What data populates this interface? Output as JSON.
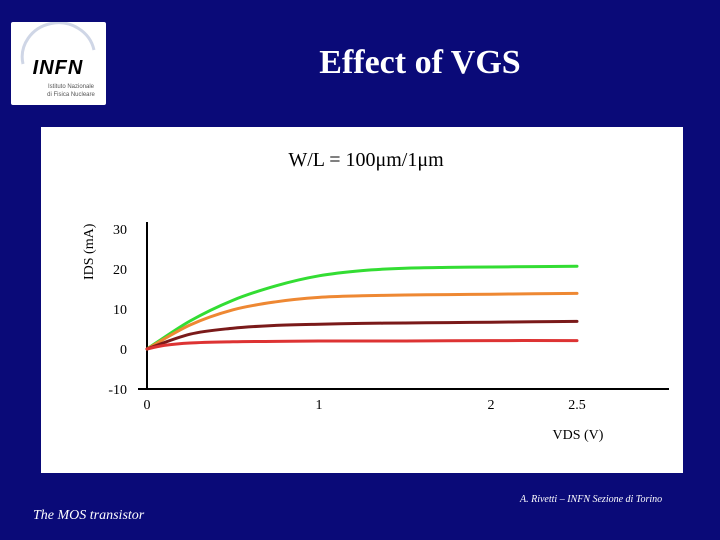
{
  "slide": {
    "title": "Effect of VGS",
    "footer_left": "The MOS transistor",
    "footer_right": "A. Rivetti – INFN Sezione di Torino"
  },
  "logo": {
    "text": "INFN",
    "subtitle_1": "Istituto Nazionale",
    "subtitle_2": "di Fisica Nucleare",
    "accent_color": "#1a3f8f"
  },
  "chart_data": {
    "type": "line",
    "title": "W/L = 100μm/1μm",
    "xlabel": "VDS (V)",
    "ylabel": "IDS (mA)",
    "xlim": [
      0,
      3.0
    ],
    "ylim": [
      -10,
      30
    ],
    "x_ticks": [
      "0",
      "1",
      "2",
      "2.5"
    ],
    "x_tick_values": [
      0,
      1,
      2,
      2.5
    ],
    "y_ticks": [
      "30",
      "20",
      "10",
      "0",
      "-10"
    ],
    "y_tick_values": [
      30,
      20,
      10,
      0,
      -10
    ],
    "series": [
      {
        "color": "#33dd33",
        "x": [
          0,
          0.25,
          0.5,
          0.75,
          1.0,
          1.25,
          1.5,
          1.75,
          2.0,
          2.25,
          2.5
        ],
        "values": [
          0,
          7.0,
          12.2,
          15.8,
          18.3,
          19.6,
          20.2,
          20.4,
          20.5,
          20.6,
          20.7
        ]
      },
      {
        "color": "#ee8833",
        "x": [
          0,
          0.25,
          0.5,
          0.75,
          1.0,
          1.25,
          1.5,
          1.75,
          2.0,
          2.25,
          2.5
        ],
        "values": [
          0,
          6.0,
          9.8,
          11.8,
          12.9,
          13.3,
          13.5,
          13.6,
          13.7,
          13.8,
          13.9
        ]
      },
      {
        "color": "#7a1a1a",
        "x": [
          0,
          0.25,
          0.5,
          0.75,
          1.0,
          1.25,
          1.5,
          1.75,
          2.0,
          2.25,
          2.5
        ],
        "values": [
          0,
          3.7,
          5.2,
          5.9,
          6.2,
          6.4,
          6.5,
          6.6,
          6.7,
          6.8,
          6.9
        ]
      },
      {
        "color": "#dd3333",
        "x": [
          0,
          0.1,
          0.25,
          0.5,
          0.75,
          1.0,
          1.5,
          2.0,
          2.5
        ],
        "values": [
          0,
          0.9,
          1.5,
          1.8,
          1.9,
          2.0,
          2.0,
          2.1,
          2.1
        ]
      }
    ],
    "grid": false,
    "legend": "none"
  }
}
